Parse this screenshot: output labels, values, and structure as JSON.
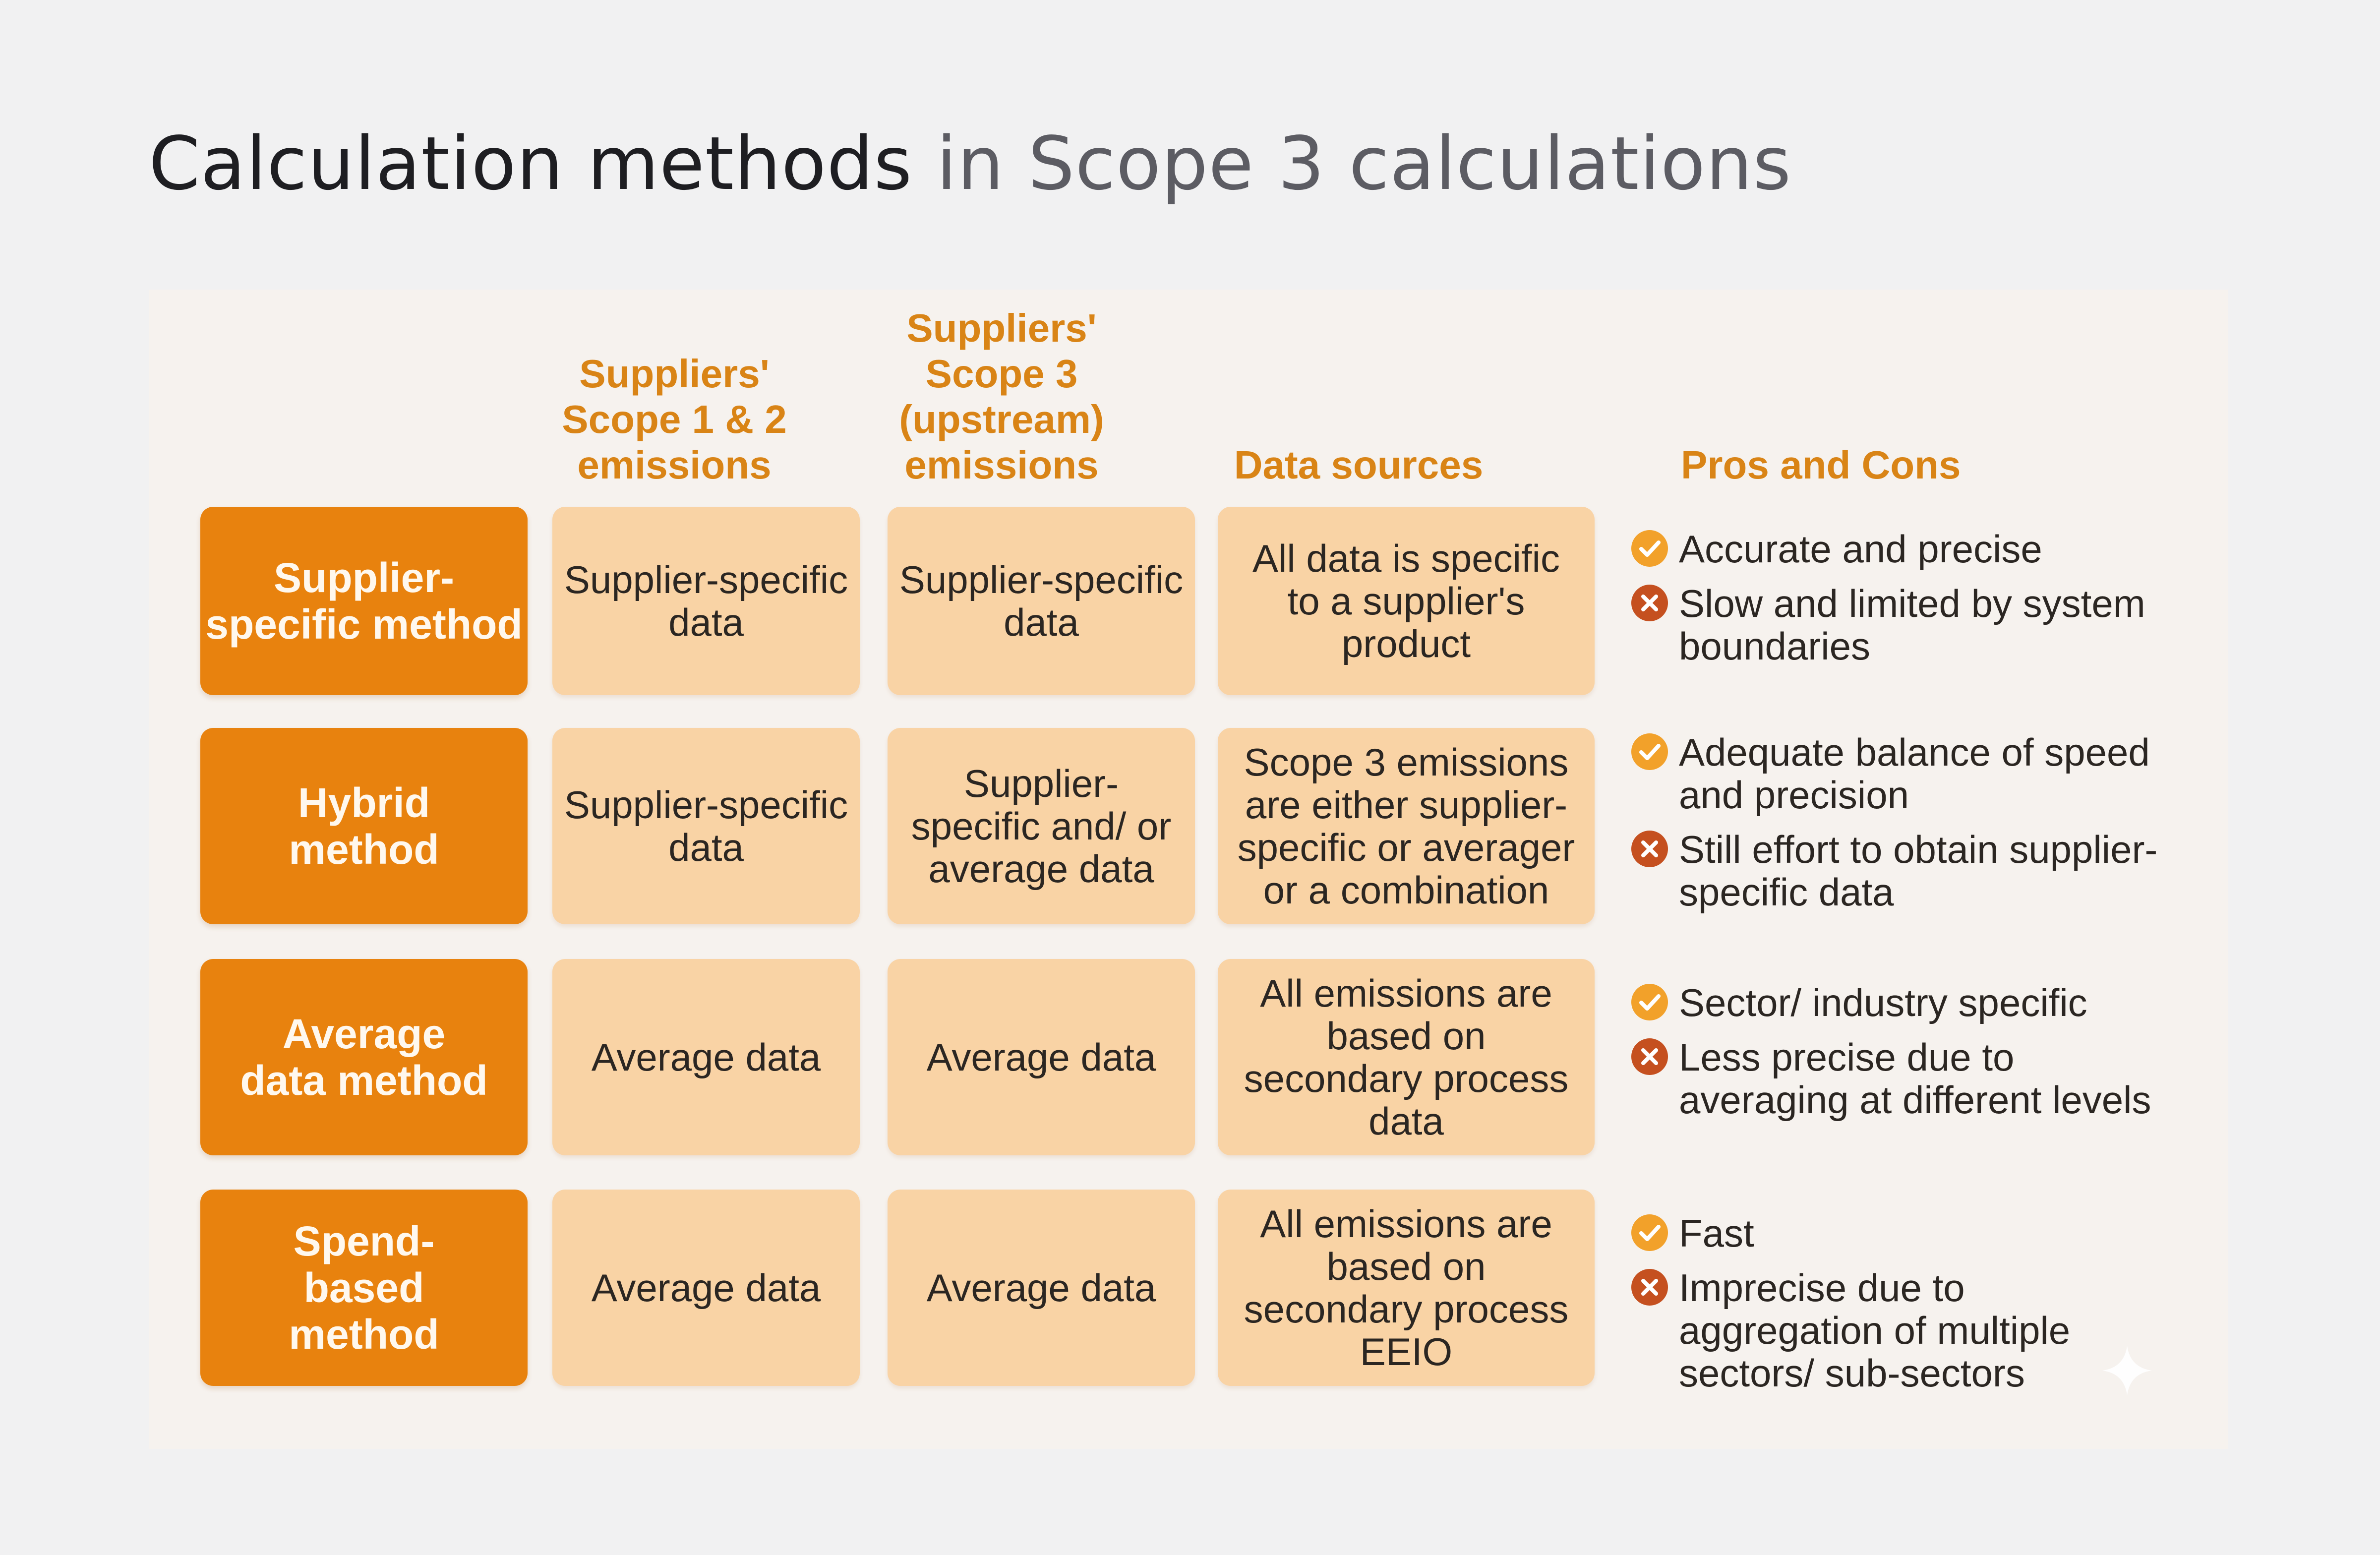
{
  "title": {
    "dark": "Calculation methods",
    "light": " in Scope 3 calculations"
  },
  "columns": [
    "Suppliers' Scope 1 & 2 emissions",
    "Suppliers' Scope 3 (upstream) emissions",
    "Data sources",
    "Pros and Cons"
  ],
  "rows": [
    {
      "method": "Supplier-specific method",
      "scope12": "Supplier-specific data",
      "scope3": "Supplier-specific data",
      "sources": "All data is specific to a supplier's product",
      "pro": "Accurate and precise",
      "con": "Slow and limited by system boundaries"
    },
    {
      "method": "Hybrid method",
      "scope12": "Supplier-specific data",
      "scope3": "Supplier-specific and/ or average data",
      "sources": "Scope 3 emissions are either supplier-specific or averager or a combination",
      "pro": "Adequate balance of speed and precision",
      "con": "Still effort to obtain supplier-specific data"
    },
    {
      "method": "Average data method",
      "scope12": "Average data",
      "scope3": "Average data",
      "sources": "All emissions are based on secondary process data",
      "pro": "Sector/ industry specific",
      "con": "Less precise due to averaging at different levels"
    },
    {
      "method": "Spend-based method",
      "scope12": "Average data",
      "scope3": "Average data",
      "sources": "All emissions are based on secondary process EEIO",
      "pro": "Fast",
      "con": "Imprecise due to aggregation of multiple sectors/ sub-sectors"
    }
  ],
  "icons": {
    "pro": "check-circle-icon",
    "con": "x-circle-icon"
  },
  "colors": {
    "method": "#e8820e",
    "cell": "#f9d3a5",
    "header": "#d98416",
    "pro": "#f2a12a",
    "con": "#c5501f"
  }
}
